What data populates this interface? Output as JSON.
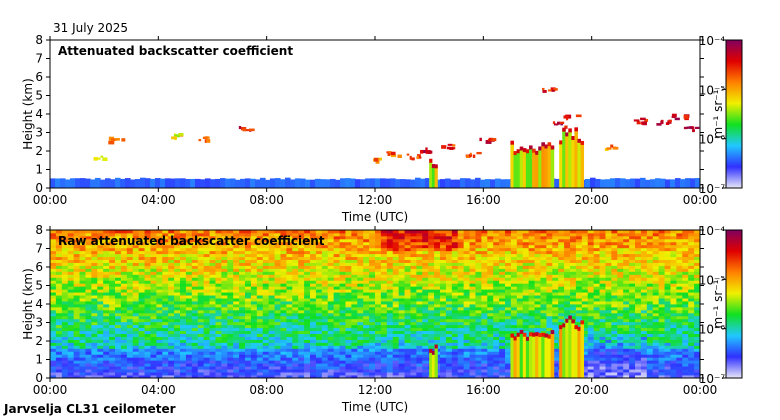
{
  "date_label": "31 July 2025",
  "footer_label": "Jarvselja CL31 ceilometer",
  "colorbar": {
    "label": "m⁻¹ sr⁻¹",
    "ticks": [
      "10⁻⁴",
      "10⁻⁵",
      "10⁻⁶",
      "10⁻⁷"
    ]
  },
  "colors": {
    "scale": [
      "#e8e8f8",
      "#3030ff",
      "#20c8ff",
      "#10e020",
      "#f0f000",
      "#ff8000",
      "#e00000",
      "#800060"
    ]
  },
  "chart_data": [
    {
      "type": "heatmap",
      "title": "Attenuated backscatter coefficient",
      "xlabel": "Time (UTC)",
      "ylabel": "Height (km)",
      "x_ticks": [
        "00:00",
        "04:00",
        "08:00",
        "12:00",
        "16:00",
        "20:00",
        "00:00"
      ],
      "y_ticks": [
        "0",
        "1",
        "2",
        "3",
        "4",
        "5",
        "6",
        "7",
        "8"
      ],
      "xlim_hours": [
        0,
        24
      ],
      "ylim_km": [
        0,
        8
      ],
      "color_scale": "log10 backscatter 1e-7 to 1e-4",
      "features": [
        {
          "name": "surface layer",
          "t_start": 0,
          "t_end": 24,
          "top_km": 0.5
        },
        {
          "name": "convective cloud",
          "t_start": 14.0,
          "t_end": 14.3,
          "top_km": 1.5
        },
        {
          "name": "rain shaft",
          "t_start": 17.0,
          "t_end": 18.6,
          "top_km": 2.5
        },
        {
          "name": "rain shaft",
          "t_start": 18.8,
          "t_end": 19.7,
          "top_km": 3.2
        },
        {
          "name": "cloud base",
          "t_start": 21.8,
          "t_end": 24.0,
          "top_km": 3.8
        }
      ]
    },
    {
      "type": "heatmap",
      "title": "Raw attenuated backscatter coefficient",
      "xlabel": "Time (UTC)",
      "ylabel": "Height (km)",
      "x_ticks": [
        "00:00",
        "04:00",
        "08:00",
        "12:00",
        "16:00",
        "20:00",
        "00:00"
      ],
      "y_ticks": [
        "0",
        "1",
        "2",
        "3",
        "4",
        "5",
        "6",
        "7",
        "8"
      ],
      "xlim_hours": [
        0,
        24
      ],
      "ylim_km": [
        0,
        8
      ],
      "color_scale": "log10 backscatter 1e-7 to 1e-4",
      "features": [
        {
          "name": "noisy background",
          "t_start": 0,
          "t_end": 24,
          "top_km": 8
        },
        {
          "name": "convective cloud",
          "t_start": 14.0,
          "t_end": 14.3,
          "top_km": 1.8
        },
        {
          "name": "rain shaft",
          "t_start": 17.0,
          "t_end": 18.6,
          "top_km": 2.5
        },
        {
          "name": "rain shaft",
          "t_start": 18.8,
          "t_end": 19.7,
          "top_km": 3.3
        }
      ]
    }
  ]
}
